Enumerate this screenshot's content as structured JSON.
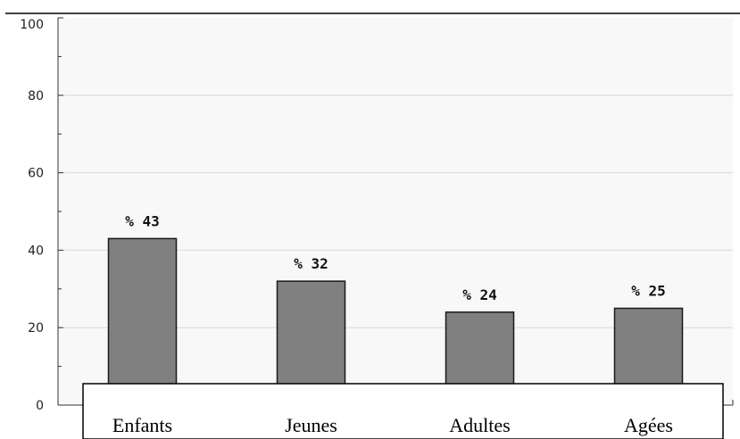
{
  "chart_data": {
    "type": "bar",
    "categories": [
      "Enfants",
      "Jeunes",
      "Adultes",
      "Agées"
    ],
    "values": [
      43,
      32,
      24,
      25
    ],
    "data_labels": [
      "% 43",
      "% 32",
      "% 24",
      "% 25"
    ],
    "yticks": [
      "0",
      "20",
      "40",
      "60",
      "80",
      "100"
    ],
    "ylim": [
      0,
      100
    ],
    "grid": true,
    "colors": {
      "bar": "#808080",
      "bar_stroke": "#1a1a1a",
      "plot_bg": "#f8f8f8",
      "grid": "#d8d8d8"
    }
  }
}
